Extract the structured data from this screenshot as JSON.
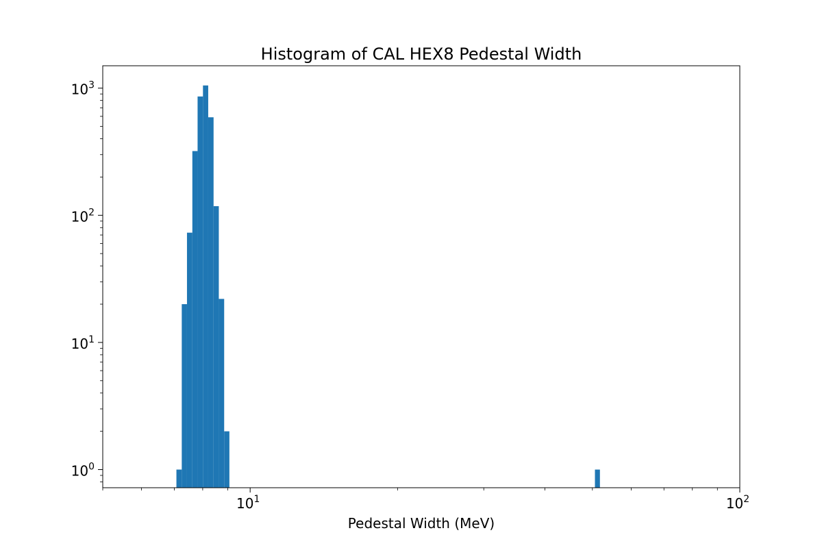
{
  "chart_data": {
    "type": "bar",
    "title": "Histogram of CAL HEX8 Pedestal Width",
    "xlabel": "Pedestal Width (MeV)",
    "ylabel": "",
    "x_scale": "log",
    "y_scale": "log",
    "xlim": [
      5.0,
      100
    ],
    "ylim": [
      0.72,
      1500
    ],
    "x_ticks": [
      {
        "value": 10,
        "base": "10",
        "exp": "1"
      },
      {
        "value": 100,
        "base": "10",
        "exp": "2"
      }
    ],
    "y_ticks": [
      {
        "value": 1,
        "base": "10",
        "exp": "0"
      },
      {
        "value": 10,
        "base": "10",
        "exp": "1"
      },
      {
        "value": 100,
        "base": "10",
        "exp": "2"
      },
      {
        "value": 1000,
        "base": "10",
        "exp": "3"
      }
    ],
    "bins": [
      {
        "left": 7.07,
        "right": 7.25,
        "count": 1
      },
      {
        "left": 7.25,
        "right": 7.43,
        "count": 20
      },
      {
        "left": 7.43,
        "right": 7.62,
        "count": 73
      },
      {
        "left": 7.62,
        "right": 7.81,
        "count": 320
      },
      {
        "left": 7.81,
        "right": 8.01,
        "count": 860
      },
      {
        "left": 8.01,
        "right": 8.21,
        "count": 1050
      },
      {
        "left": 8.21,
        "right": 8.42,
        "count": 590
      },
      {
        "left": 8.42,
        "right": 8.63,
        "count": 118
      },
      {
        "left": 8.63,
        "right": 8.85,
        "count": 22
      },
      {
        "left": 8.85,
        "right": 9.07,
        "count": 2
      },
      {
        "left": 50.6,
        "right": 51.8,
        "count": 1
      }
    ],
    "grid": false,
    "bar_color": "#1f77b4"
  }
}
